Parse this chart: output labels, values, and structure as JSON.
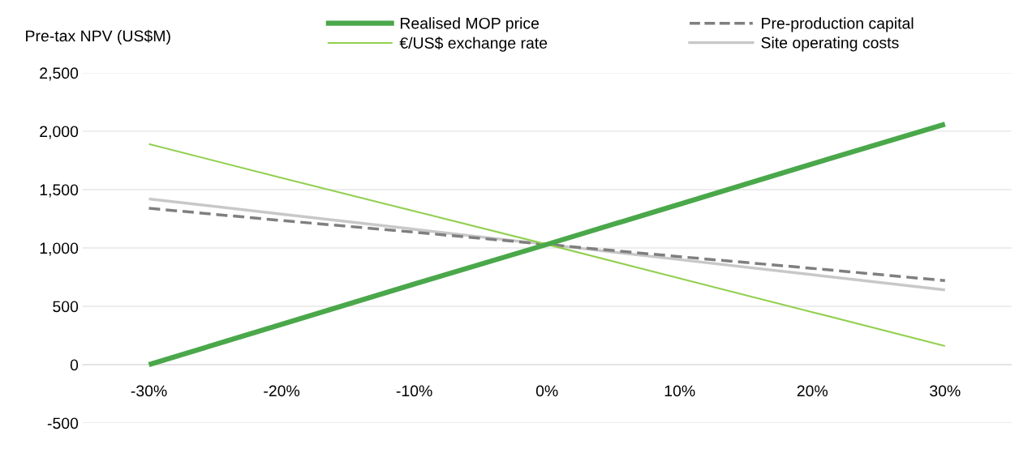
{
  "chart_data": {
    "type": "line",
    "ylabel": "Pre-tax NPV (US$M)",
    "categories": [
      "-30%",
      "-20%",
      "-10%",
      "0%",
      "10%",
      "20%",
      "30%"
    ],
    "series": [
      {
        "name": "Realised MOP price",
        "color": "#4aa84a",
        "values": [
          0,
          345,
          690,
          1030,
          1375,
          1720,
          2060
        ]
      },
      {
        "name": "€/US$ exchange rate",
        "color": "#92d050",
        "values": [
          1890,
          1600,
          1315,
          1030,
          740,
          450,
          160
        ]
      },
      {
        "name": "Pre-production capital",
        "color": "#7f7f7f",
        "line_style": "dashed",
        "values": [
          1340,
          1235,
          1135,
          1030,
          925,
          825,
          720
        ]
      },
      {
        "name": "Site operating costs",
        "color": "#c8c8c8",
        "values": [
          1420,
          1290,
          1160,
          1030,
          900,
          770,
          640
        ]
      }
    ],
    "ylim": [
      -500,
      2500
    ],
    "yticks": [
      {
        "value": -500,
        "label": "-500"
      },
      0,
      {
        "value": 500,
        "label": "500"
      },
      {
        "value": 1000,
        "label": "1,000"
      },
      {
        "value": 1500,
        "label": "1,500"
      },
      {
        "value": 2000,
        "label": "2,000"
      },
      {
        "value": 2500,
        "label": "2,500"
      }
    ],
    "grid": "y",
    "legend": "top",
    "marker": "none"
  }
}
